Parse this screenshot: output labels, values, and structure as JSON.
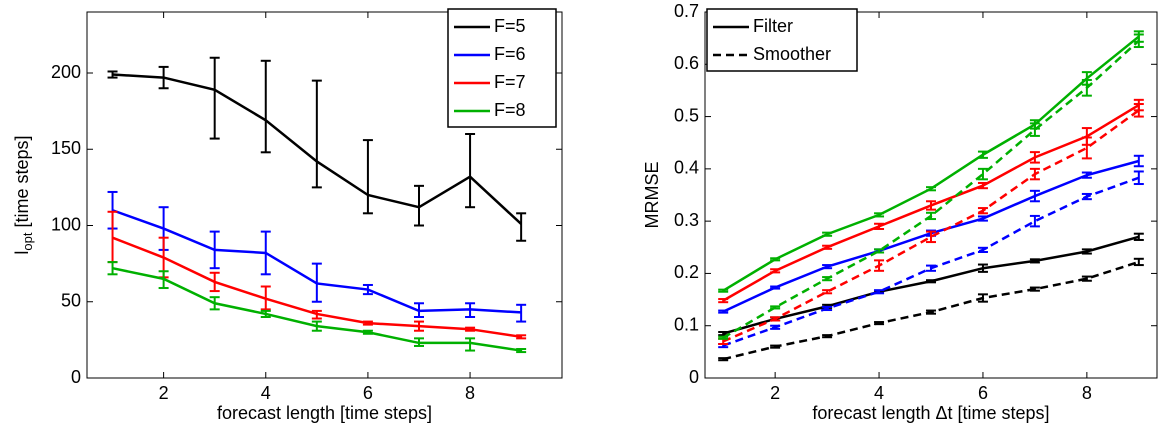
{
  "chart_data": [
    {
      "type": "line",
      "xlabel": "forecast length [time steps]",
      "ylabel": {
        "main": "l",
        "sub": "opt",
        "rest": "[time steps]"
      },
      "x": [
        1,
        2,
        3,
        4,
        5,
        6,
        7,
        8,
        9
      ],
      "xlim": [
        0.5,
        9.8
      ],
      "xticks": [
        2,
        4,
        6,
        8
      ],
      "ylim": [
        0,
        240
      ],
      "yticks": [
        0,
        50,
        100,
        150,
        200
      ],
      "legend_position": "upper right",
      "series": [
        {
          "name": "F=5",
          "color": "#000000",
          "dashed": false,
          "values": [
            199,
            197,
            189,
            169,
            142,
            120,
            112,
            132,
            101
          ],
          "lower": [
            197,
            190,
            157,
            148,
            125,
            108,
            100,
            112,
            90
          ],
          "upper": [
            201,
            204,
            210,
            208,
            195,
            156,
            126,
            160,
            108
          ]
        },
        {
          "name": "F=6",
          "color": "#0000ff",
          "dashed": false,
          "values": [
            110,
            98,
            84,
            82,
            62,
            58,
            44,
            45,
            43
          ],
          "lower": [
            98,
            84,
            72,
            68,
            50,
            55,
            40,
            40,
            37
          ],
          "upper": [
            122,
            112,
            96,
            96,
            75,
            61,
            49,
            49,
            48
          ]
        },
        {
          "name": "F=7",
          "color": "#ff0000",
          "dashed": false,
          "values": [
            92,
            79,
            63,
            52,
            42,
            36,
            34,
            32,
            27
          ],
          "lower": [
            76,
            66,
            57,
            45,
            39,
            35,
            31,
            31,
            26
          ],
          "upper": [
            109,
            92,
            69,
            60,
            44,
            37,
            37,
            33,
            28
          ]
        },
        {
          "name": "F=8",
          "color": "#00b000",
          "dashed": false,
          "values": [
            72,
            65,
            49,
            42,
            34,
            30,
            23,
            23,
            18
          ],
          "lower": [
            68,
            59,
            45,
            40,
            31,
            29,
            21,
            18,
            17
          ],
          "upper": [
            76,
            70,
            53,
            44,
            37,
            31,
            26,
            26,
            19
          ]
        }
      ]
    },
    {
      "type": "line",
      "xlabel": "forecast length Δt [time steps]",
      "ylabel": {
        "main": "MRMSE"
      },
      "x": [
        1,
        2,
        3,
        4,
        5,
        6,
        7,
        8,
        9
      ],
      "xlim": [
        0.65,
        9.35
      ],
      "xticks": [
        2,
        4,
        6,
        8
      ],
      "ylim": [
        0,
        0.7
      ],
      "yticks": [
        0,
        0.1,
        0.2,
        0.3,
        0.4,
        0.5,
        0.6,
        0.7
      ],
      "legend_position": "upper left",
      "legend": [
        {
          "name": "Filter",
          "dashed": false
        },
        {
          "name": "Smoother",
          "dashed": true
        }
      ],
      "series": [
        {
          "color": "#000000",
          "dashed": false,
          "values": [
            0.085,
            0.113,
            0.137,
            0.165,
            0.185,
            0.21,
            0.224,
            0.242,
            0.27
          ],
          "errors": [
            0.003,
            0.003,
            0.003,
            0.002,
            0.002,
            0.007,
            0.003,
            0.004,
            0.006
          ]
        },
        {
          "color": "#000000",
          "dashed": true,
          "values": [
            0.036,
            0.06,
            0.08,
            0.105,
            0.126,
            0.153,
            0.17,
            0.19,
            0.222
          ],
          "errors": [
            0.002,
            0.002,
            0.002,
            0.002,
            0.003,
            0.007,
            0.003,
            0.004,
            0.006
          ]
        },
        {
          "color": "#0000ff",
          "dashed": false,
          "values": [
            0.127,
            0.173,
            0.213,
            0.243,
            0.277,
            0.305,
            0.348,
            0.388,
            0.415
          ],
          "errors": [
            0.002,
            0.002,
            0.003,
            0.003,
            0.005,
            0.004,
            0.01,
            0.005,
            0.01
          ]
        },
        {
          "color": "#0000ff",
          "dashed": true,
          "values": [
            0.062,
            0.097,
            0.133,
            0.165,
            0.21,
            0.245,
            0.3,
            0.347,
            0.383
          ],
          "errors": [
            0.003,
            0.003,
            0.003,
            0.003,
            0.005,
            0.004,
            0.01,
            0.005,
            0.012
          ]
        },
        {
          "color": "#ff0000",
          "dashed": false,
          "values": [
            0.148,
            0.205,
            0.25,
            0.29,
            0.33,
            0.368,
            0.422,
            0.462,
            0.522
          ],
          "errors": [
            0.003,
            0.003,
            0.003,
            0.005,
            0.008,
            0.005,
            0.01,
            0.016,
            0.01
          ]
        },
        {
          "color": "#ff0000",
          "dashed": true,
          "values": [
            0.07,
            0.113,
            0.165,
            0.215,
            0.27,
            0.32,
            0.39,
            0.44,
            0.512
          ],
          "errors": [
            0.005,
            0.003,
            0.003,
            0.01,
            0.01,
            0.005,
            0.01,
            0.02,
            0.012
          ]
        },
        {
          "color": "#00b000",
          "dashed": false,
          "values": [
            0.167,
            0.227,
            0.275,
            0.312,
            0.362,
            0.427,
            0.485,
            0.573,
            0.653
          ],
          "errors": [
            0.002,
            0.002,
            0.003,
            0.003,
            0.003,
            0.006,
            0.008,
            0.012,
            0.01
          ]
        },
        {
          "color": "#00b000",
          "dashed": true,
          "values": [
            0.077,
            0.135,
            0.19,
            0.243,
            0.31,
            0.39,
            0.475,
            0.555,
            0.645
          ],
          "errors": [
            0.002,
            0.002,
            0.003,
            0.003,
            0.006,
            0.01,
            0.012,
            0.015,
            0.012
          ]
        }
      ]
    }
  ]
}
